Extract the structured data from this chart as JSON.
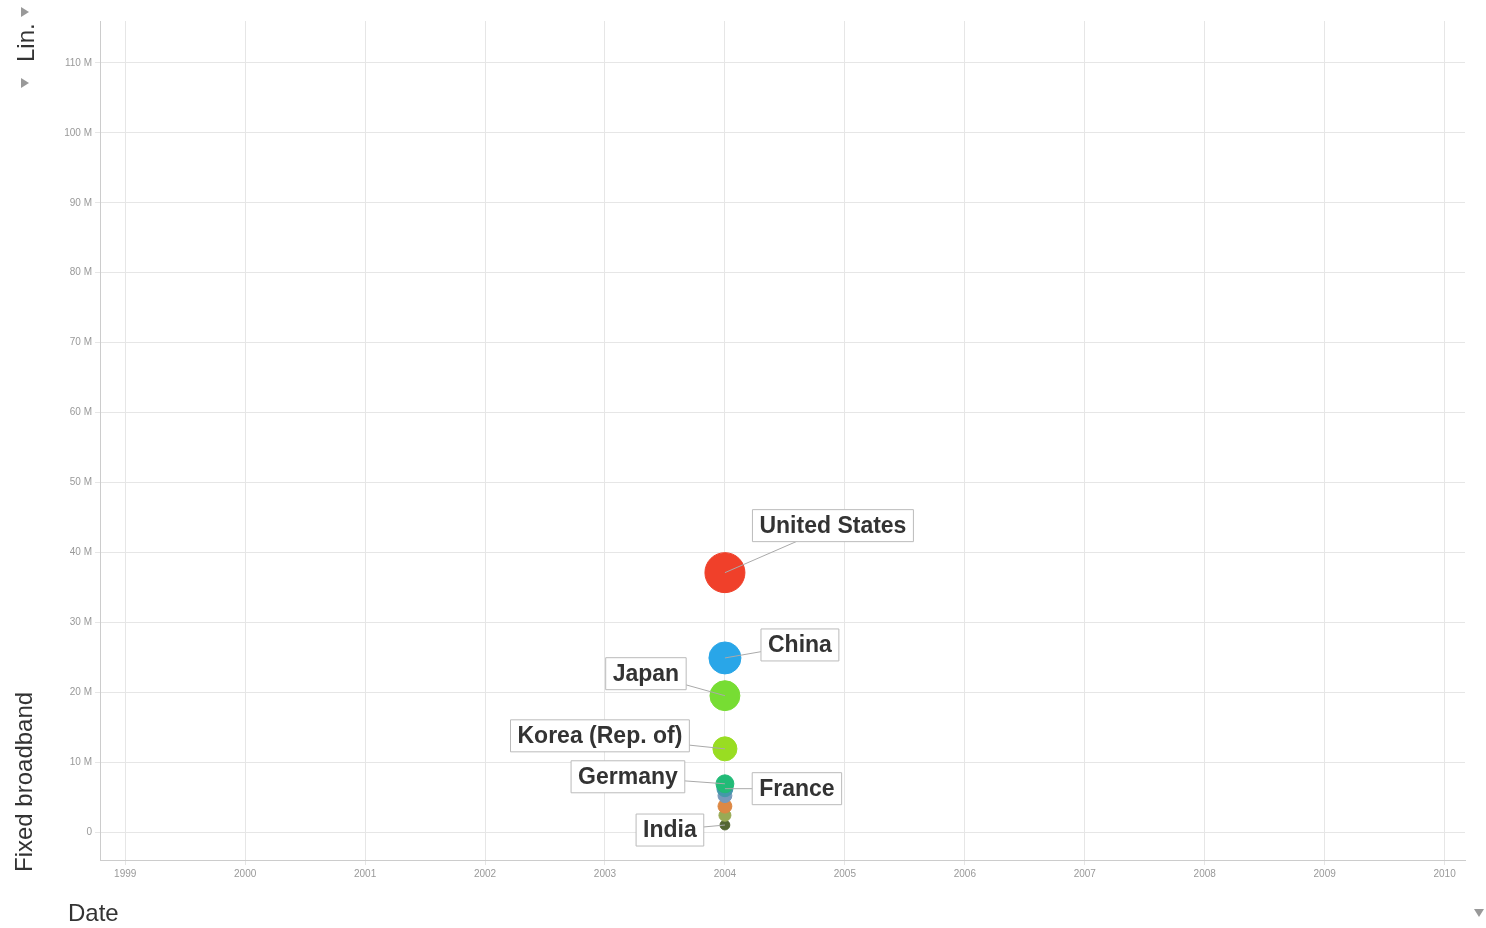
{
  "chart_data": {
    "type": "bubble",
    "xlabel": "Date",
    "ylabel": "Fixed broadband",
    "annotations": [
      "Lin."
    ],
    "x": [
      2004
    ],
    "xlim": [
      1998.79,
      2010.17
    ],
    "xticks": [
      1999,
      2000,
      2001,
      2002,
      2003,
      2004,
      2005,
      2006,
      2007,
      2008,
      2009,
      2010
    ],
    "ylim": [
      -4,
      116
    ],
    "yticks": [
      0,
      {
        "value": 10,
        "label": "10 M"
      },
      {
        "value": 20,
        "label": "20 M"
      },
      {
        "value": 30,
        "label": "30 M"
      },
      {
        "value": 40,
        "label": "40 M"
      },
      {
        "value": 50,
        "label": "50 M"
      },
      {
        "value": 60,
        "label": "60 M"
      },
      {
        "value": 70,
        "label": "70 M"
      },
      {
        "value": 80,
        "label": "80 M"
      },
      {
        "value": 90,
        "label": "90 M"
      },
      {
        "value": 100,
        "label": "100 M"
      },
      {
        "value": 110,
        "label": "110 M"
      }
    ],
    "grid": true,
    "legend": false,
    "series": [
      {
        "name": "United States",
        "color": "#f0402a",
        "values": [
          37.1
        ],
        "sizes": [
          1
        ]
      },
      {
        "name": "China",
        "color": "#29a6e8",
        "values": [
          24.9
        ],
        "sizes": [
          0.64
        ]
      },
      {
        "name": "Japan",
        "color": "#77dd33",
        "values": [
          19.5
        ],
        "sizes": [
          0.56
        ]
      },
      {
        "name": "Korea (Rep. of)",
        "color": "#99dd22",
        "values": [
          11.9
        ],
        "sizes": [
          0.36
        ]
      },
      {
        "name": "Germany",
        "color": "#22bb77",
        "values": [
          6.9
        ],
        "sizes": [
          0.2
        ]
      },
      {
        "name": "France",
        "color": "#4499aa",
        "values": [
          6.2
        ],
        "sizes": [
          0.16
        ]
      },
      {
        "color": "#7799bb",
        "values": [
          5.2
        ],
        "sizes": [
          0.12
        ]
      },
      {
        "color": "#dd8844",
        "values": [
          3.7
        ],
        "sizes": [
          0.12
        ]
      },
      {
        "color": "#99aa55",
        "values": [
          2.4
        ],
        "sizes": [
          0.09
        ]
      },
      {
        "name": "India",
        "color": "#556633",
        "values": [
          1.0
        ],
        "sizes": [
          0.06
        ]
      }
    ]
  }
}
